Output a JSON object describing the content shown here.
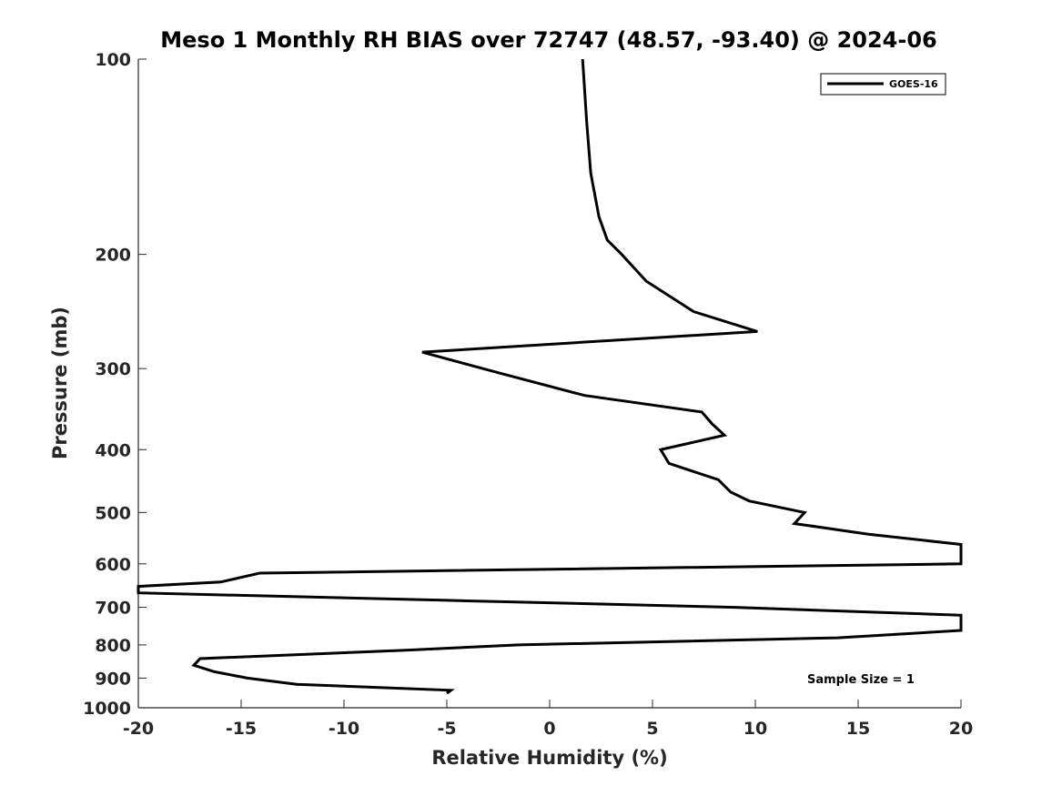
{
  "chart_data": {
    "type": "line",
    "title": "Meso 1 Monthly RH BIAS over 72747 (48.57, -93.40) @ 2024-06",
    "xlabel": "Relative Humidity (%)",
    "ylabel": "Pressure (mb)",
    "xlim": [
      -20,
      20
    ],
    "ylim": [
      100,
      1000
    ],
    "y_scale": "log",
    "y_reversed": true,
    "xticks": [
      -20,
      -15,
      -10,
      -5,
      0,
      5,
      10,
      15,
      20
    ],
    "xtick_labels": [
      "-20",
      "-15",
      "-10",
      "-5",
      "0",
      "5",
      "10",
      "15",
      "20"
    ],
    "yticks": [
      100,
      200,
      300,
      400,
      500,
      600,
      700,
      800,
      900,
      1000
    ],
    "ytick_labels": [
      "100",
      "200",
      "300",
      "400",
      "500",
      "600",
      "700",
      "800",
      "900",
      "1000"
    ],
    "grid": false,
    "legend_position": "top-right",
    "annotation": "Sample Size = 1",
    "series": [
      {
        "name": "GOES-16",
        "color": "#000000",
        "points": [
          {
            "x": 1.6,
            "y": 100
          },
          {
            "x": 1.8,
            "y": 125
          },
          {
            "x": 2.0,
            "y": 150
          },
          {
            "x": 2.4,
            "y": 175
          },
          {
            "x": 2.8,
            "y": 190
          },
          {
            "x": 3.5,
            "y": 200
          },
          {
            "x": 4.7,
            "y": 220
          },
          {
            "x": 7.0,
            "y": 245
          },
          {
            "x": 10.1,
            "y": 263
          },
          {
            "x": -6.2,
            "y": 283
          },
          {
            "x": -2.4,
            "y": 305
          },
          {
            "x": 1.7,
            "y": 330
          },
          {
            "x": 7.4,
            "y": 350
          },
          {
            "x": 7.9,
            "y": 365
          },
          {
            "x": 8.5,
            "y": 380
          },
          {
            "x": 5.4,
            "y": 400
          },
          {
            "x": 5.8,
            "y": 420
          },
          {
            "x": 8.2,
            "y": 445
          },
          {
            "x": 8.8,
            "y": 465
          },
          {
            "x": 9.7,
            "y": 480
          },
          {
            "x": 12.4,
            "y": 500
          },
          {
            "x": 11.9,
            "y": 520
          },
          {
            "x": 15.5,
            "y": 540
          },
          {
            "x": 20.0,
            "y": 560
          },
          {
            "x": 20.0,
            "y": 600
          },
          {
            "x": -14.1,
            "y": 620
          },
          {
            "x": -16.0,
            "y": 640
          },
          {
            "x": -20.0,
            "y": 650
          },
          {
            "x": -20.0,
            "y": 665
          },
          {
            "x": -5.0,
            "y": 683
          },
          {
            "x": 9.0,
            "y": 700
          },
          {
            "x": 20.0,
            "y": 720
          },
          {
            "x": 20.0,
            "y": 760
          },
          {
            "x": 14.0,
            "y": 780
          },
          {
            "x": -1.5,
            "y": 800
          },
          {
            "x": -7.0,
            "y": 815
          },
          {
            "x": -17.0,
            "y": 840
          },
          {
            "x": -17.3,
            "y": 860
          },
          {
            "x": -16.3,
            "y": 880
          },
          {
            "x": -14.7,
            "y": 900
          },
          {
            "x": -12.3,
            "y": 920
          },
          {
            "x": -4.8,
            "y": 940
          },
          {
            "x": -5.0,
            "y": 950
          }
        ]
      }
    ]
  }
}
